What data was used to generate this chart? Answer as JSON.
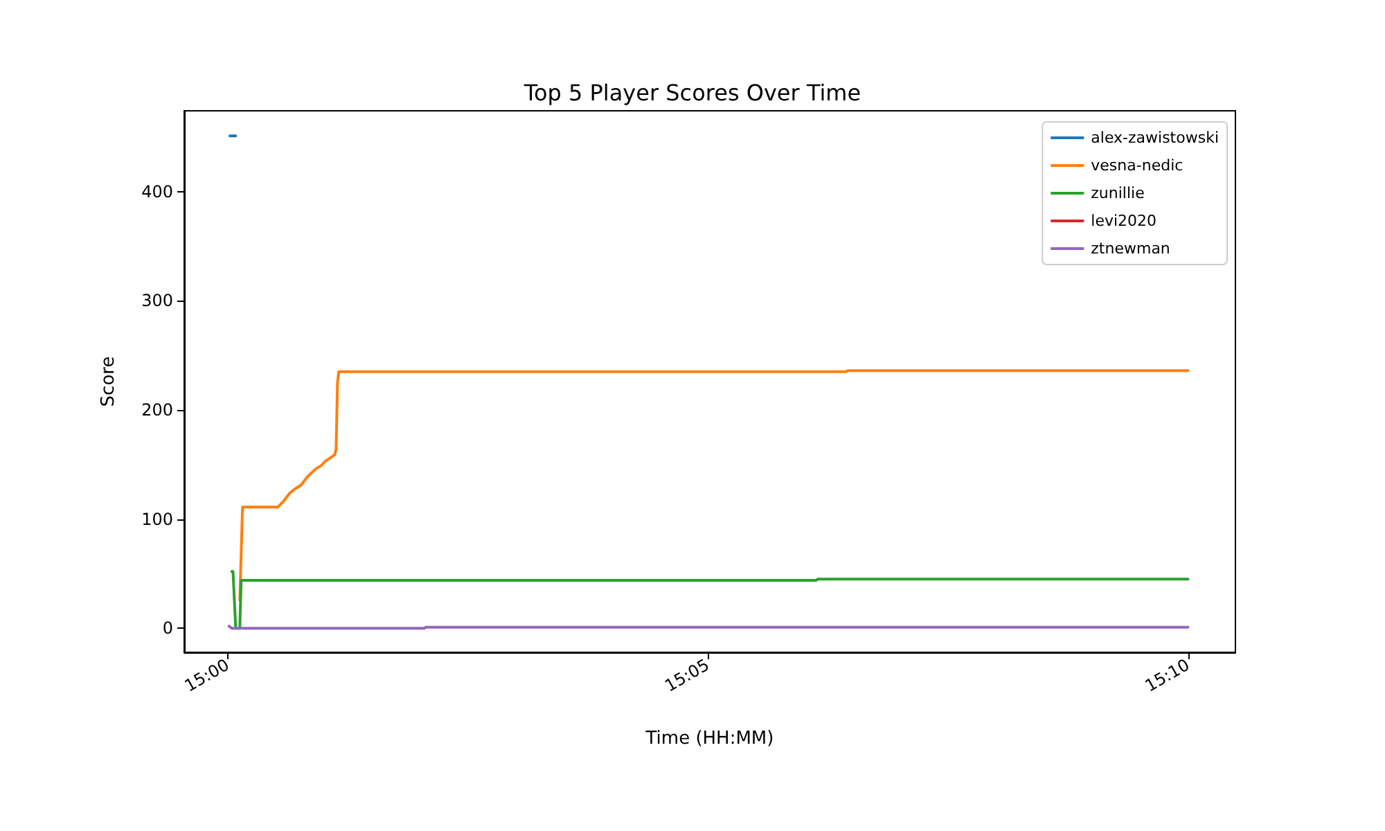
{
  "chart_data": {
    "type": "line",
    "title": "Top 5 Player Scores Over Time",
    "xlabel": "Time (HH:MM)",
    "ylabel": "Score",
    "xlim": [
      14.99247,
      15.1749
    ],
    "xticks": [
      {
        "value": 15.0,
        "label": "15:00"
      },
      {
        "value": 15.08333,
        "label": "15:05"
      },
      {
        "value": 15.16667,
        "label": "15:10"
      }
    ],
    "ylim": [
      -22,
      474
    ],
    "yticks": [
      0,
      100,
      200,
      300,
      400
    ],
    "grid": false,
    "legend": "top right",
    "marker": "none",
    "line_style": "solid",
    "series": [
      {
        "name": "alex-zawistowski",
        "color": "#1f77b4",
        "x": [
          15.0004,
          15.0014
        ],
        "values": [
          451,
          451
        ]
      },
      {
        "name": "vesna-nedic",
        "color": "#ff7f0e",
        "x": [
          15.00212,
          15.00259,
          15.00871,
          15.00965,
          15.01083,
          15.01177,
          15.01271,
          15.01389,
          15.0153,
          15.01624,
          15.01695,
          15.0186,
          15.01883,
          15.01907,
          15.0193,
          15.10734,
          15.10758,
          15.16667
        ],
        "values": [
          26,
          111,
          111,
          116,
          124,
          128,
          131,
          139,
          146,
          149,
          153,
          159,
          164,
          225,
          235,
          235,
          236,
          236
        ]
      },
      {
        "name": "zunillie",
        "color": "#2ca02c",
        "x": [
          15.00071,
          15.00094,
          15.00141,
          15.00212,
          15.00235,
          15.10217,
          15.1024,
          15.16667
        ],
        "values": [
          52,
          52,
          0,
          0,
          44,
          44,
          45,
          45
        ]
      },
      {
        "name": "levi2020",
        "color": "#d62728"
      },
      {
        "name": "ztnewman",
        "color": "#9467bd",
        "x": [
          15.00024,
          15.00071,
          15.03413,
          15.03437,
          15.16667
        ],
        "values": [
          2,
          0,
          0,
          1,
          1
        ]
      }
    ]
  }
}
